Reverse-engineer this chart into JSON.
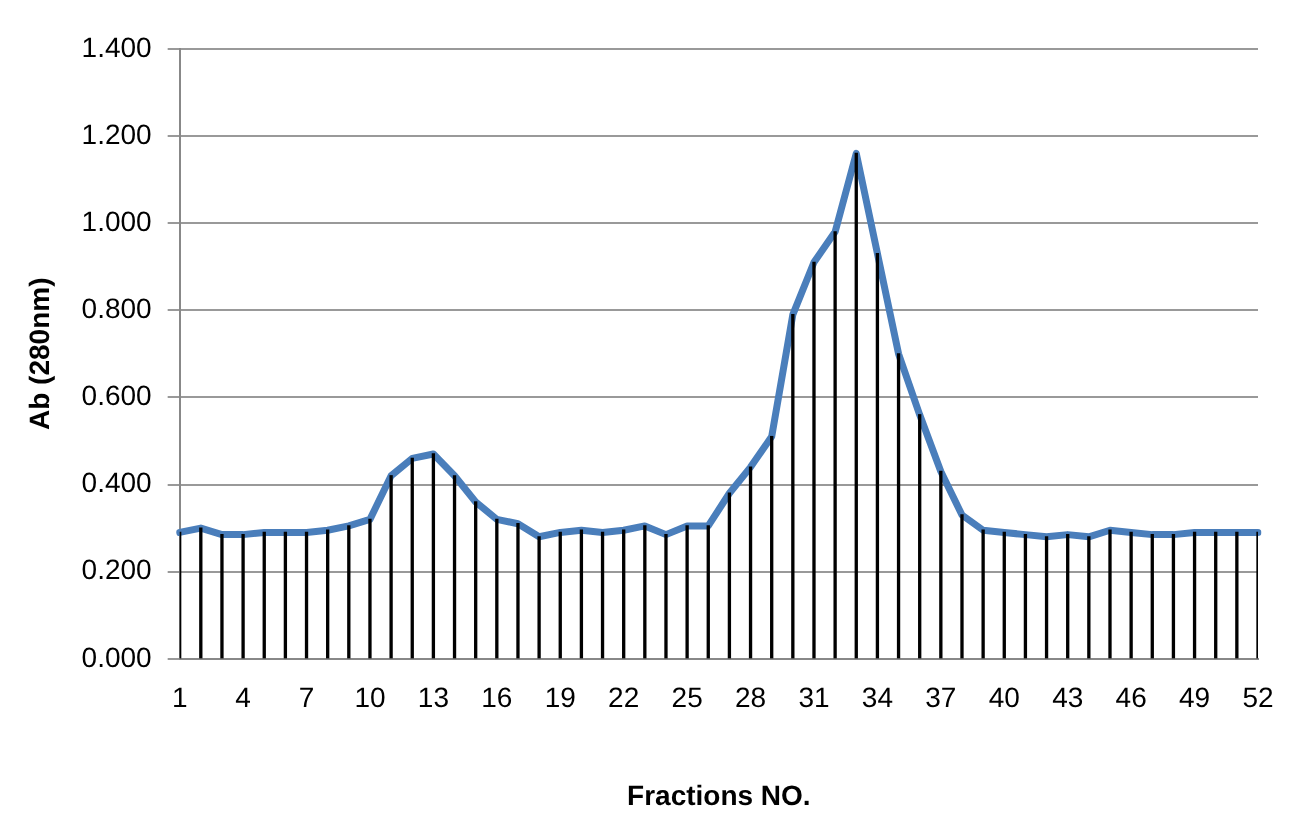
{
  "chart_data": {
    "type": "line",
    "xlabel": "Fractions NO.",
    "ylabel": "Ab (280nm)",
    "categories": [
      "1",
      null,
      null,
      "4",
      null,
      null,
      "7",
      null,
      null,
      "10",
      null,
      null,
      "13",
      null,
      null,
      "16",
      null,
      null,
      "19",
      null,
      null,
      "22",
      null,
      null,
      "25",
      null,
      null,
      "28",
      null,
      null,
      "31",
      null,
      null,
      "34",
      null,
      null,
      "37",
      null,
      null,
      "40",
      null,
      null,
      "43",
      null,
      null,
      "46",
      null,
      null,
      "49",
      null,
      null,
      "52"
    ],
    "series": [
      {
        "type": "bar",
        "color": "#000000",
        "values": [
          0.29,
          0.3,
          0.285,
          0.285,
          0.29,
          0.29,
          0.29,
          0.295,
          0.305,
          0.32,
          0.42,
          0.46,
          0.47,
          0.42,
          0.36,
          0.32,
          0.31,
          0.28,
          0.29,
          0.295,
          0.29,
          0.295,
          0.305,
          0.285,
          0.305,
          0.305,
          0.38,
          0.44,
          0.51,
          0.79,
          0.91,
          0.98,
          1.16,
          0.93,
          0.7,
          0.56,
          0.43,
          0.33,
          0.295,
          0.29,
          0.285,
          0.28,
          0.285,
          0.28,
          0.295,
          0.29,
          0.285,
          0.285,
          0.29,
          0.29,
          0.29,
          0.29
        ]
      },
      {
        "color": "#4a7ebb",
        "values": [
          0.29,
          0.3,
          0.285,
          0.285,
          0.29,
          0.29,
          0.29,
          0.295,
          0.305,
          0.32,
          0.42,
          0.46,
          0.47,
          0.42,
          0.36,
          0.32,
          0.31,
          0.28,
          0.29,
          0.295,
          0.29,
          0.295,
          0.305,
          0.285,
          0.305,
          0.305,
          0.38,
          0.44,
          0.51,
          0.79,
          0.91,
          0.98,
          1.16,
          0.93,
          0.7,
          0.56,
          0.43,
          0.33,
          0.295,
          0.29,
          0.285,
          0.28,
          0.285,
          0.28,
          0.295,
          0.29,
          0.285,
          0.285,
          0.29,
          0.29,
          0.29,
          0.29
        ]
      }
    ],
    "ylim": [
      0,
      1.4
    ],
    "yticks": [
      {
        "value": 0,
        "label": "0.000"
      },
      {
        "value": 0.2,
        "label": "0.200"
      },
      {
        "value": 0.4,
        "label": "0.400"
      },
      {
        "value": 0.6,
        "label": "0.600"
      },
      {
        "value": 0.8,
        "label": "0.800"
      },
      {
        "value": 1.0,
        "label": "1.000"
      },
      {
        "value": 1.2,
        "label": "1.200"
      },
      {
        "value": 1.4,
        "label": "1.400"
      }
    ],
    "grid": "y",
    "legend": false,
    "marker": "none",
    "line_style": "solid"
  }
}
